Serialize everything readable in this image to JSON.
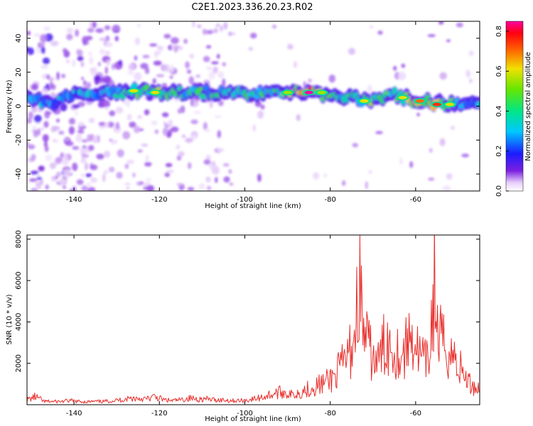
{
  "figure_title": "C2E1.2023.336.20.23.R02",
  "colors": {
    "snr_line": "#e8312e",
    "background": "#ffffff",
    "axis": "#000000"
  },
  "chart_data": [
    {
      "type": "heatmap",
      "title": "C2E1.2023.336.20.23.R02",
      "xlabel": "Height of straight line (km)",
      "ylabel": "Frequency (Hz)",
      "xlim": [
        -151,
        -45
      ],
      "ylim": [
        -50,
        50
      ],
      "xticks": [
        -140,
        -120,
        -100,
        -80,
        -60
      ],
      "yticks": [
        -40,
        -20,
        0,
        20,
        40
      ],
      "colorbar": {
        "label": "Normalized spectral amplitude",
        "range": [
          0,
          0.85
        ],
        "ticks": [
          0.0,
          0.2,
          0.4,
          0.6,
          0.8
        ],
        "colormap": "rainbow (white-purple-blue-cyan-green-yellow-red-magenta)"
      },
      "ridge": {
        "description": "Main energy band near 5-10 Hz decreasing toward ~0 Hz at the right",
        "x": [
          -150,
          -145,
          -140,
          -135,
          -130,
          -125,
          -120,
          -115,
          -110,
          -105,
          -100,
          -95,
          -90,
          -85,
          -80,
          -75,
          -70,
          -65,
          -60,
          -55,
          -50,
          -46
        ],
        "freq": [
          5,
          1,
          7,
          7,
          8,
          9,
          8,
          8,
          8,
          8,
          8,
          7,
          8,
          8,
          7,
          5,
          3,
          6,
          4,
          2,
          1,
          2
        ],
        "amplitude": [
          0.35,
          0.3,
          0.35,
          0.35,
          0.4,
          0.5,
          0.55,
          0.45,
          0.45,
          0.45,
          0.45,
          0.5,
          0.55,
          0.85,
          0.5,
          0.45,
          0.55,
          0.5,
          0.65,
          0.7,
          0.5,
          0.35
        ]
      },
      "hotspots": [
        {
          "x": -126,
          "freq": 9,
          "amplitude": 0.6
        },
        {
          "x": -121,
          "freq": 8,
          "amplitude": 0.6
        },
        {
          "x": -85,
          "freq": 8,
          "amplitude": 0.85
        },
        {
          "x": -82,
          "freq": 8,
          "amplitude": 0.55
        },
        {
          "x": -90,
          "freq": 8,
          "amplitude": 0.55
        },
        {
          "x": -72,
          "freq": 3,
          "amplitude": 0.6
        },
        {
          "x": -63,
          "freq": 5,
          "amplitude": 0.6
        },
        {
          "x": -59,
          "freq": 3,
          "amplitude": 0.7
        },
        {
          "x": -55,
          "freq": 1,
          "amplitude": 0.75
        },
        {
          "x": -52,
          "freq": 1,
          "amplitude": 0.6
        }
      ]
    },
    {
      "type": "line",
      "xlabel": "Height of straight line (km)",
      "ylabel": "SNR (10 * v/v)",
      "xlim": [
        -151,
        -45
      ],
      "ylim": [
        0,
        8200
      ],
      "xticks": [
        -140,
        -120,
        -100,
        -80,
        -60
      ],
      "yticks": [
        2000,
        4000,
        6000,
        8000
      ],
      "series": [
        {
          "name": "SNR",
          "x": [
            -151,
            -149,
            -147,
            -145,
            -143,
            -141,
            -139,
            -137,
            -135,
            -133,
            -131,
            -129,
            -127,
            -125,
            -123,
            -121,
            -119,
            -117,
            -115,
            -113,
            -111,
            -109,
            -107,
            -105,
            -103,
            -101,
            -99,
            -97,
            -95,
            -93,
            -91,
            -89,
            -87,
            -85,
            -83,
            -81,
            -79,
            -77,
            -75,
            -74,
            -73.2,
            -72.5,
            -71,
            -69,
            -67,
            -65,
            -63,
            -61,
            -59,
            -57,
            -56,
            -55.6,
            -55,
            -53,
            -51,
            -49,
            -47,
            -45
          ],
          "values": [
            300,
            500,
            200,
            200,
            200,
            250,
            200,
            180,
            200,
            200,
            250,
            300,
            400,
            400,
            350,
            500,
            300,
            250,
            300,
            400,
            350,
            350,
            300,
            300,
            250,
            250,
            300,
            400,
            550,
            700,
            800,
            600,
            800,
            1000,
            1200,
            1400,
            1800,
            2500,
            3500,
            5000,
            8200,
            5000,
            3500,
            2500,
            4000,
            3500,
            3000,
            4500,
            3000,
            2500,
            6000,
            7700,
            4500,
            3500,
            3000,
            2000,
            1200,
            1000
          ]
        }
      ]
    }
  ]
}
